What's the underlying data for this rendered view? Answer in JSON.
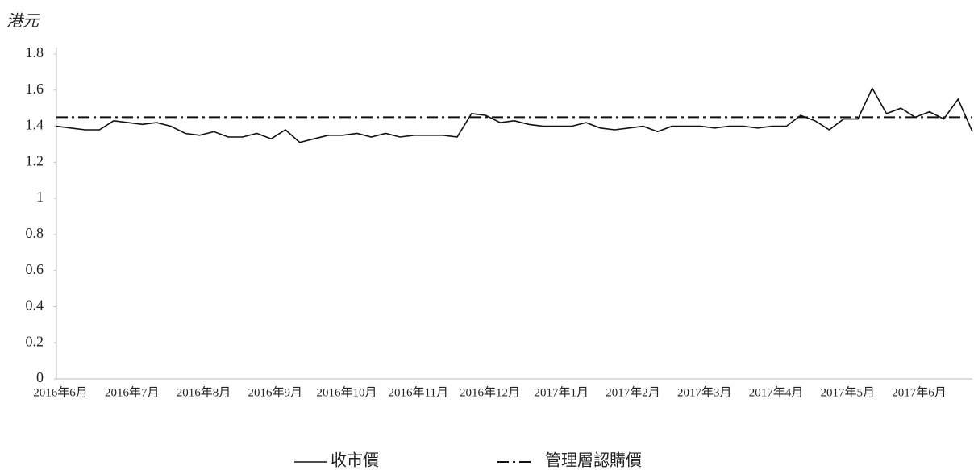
{
  "chart_data": {
    "type": "line",
    "y_label": "港元",
    "categories": [
      "2016年6月",
      null,
      null,
      null,
      null,
      "2016年7月",
      null,
      null,
      null,
      null,
      "2016年8月",
      null,
      null,
      null,
      null,
      "2016年9月",
      null,
      null,
      null,
      null,
      "2016年10月",
      null,
      null,
      null,
      null,
      "2016年11月",
      null,
      null,
      null,
      null,
      "2016年12月",
      null,
      null,
      null,
      null,
      "2017年1月",
      null,
      null,
      null,
      null,
      "2017年2月",
      null,
      null,
      null,
      null,
      "2017年3月",
      null,
      null,
      null,
      null,
      "2017年4月",
      null,
      null,
      null,
      null,
      "2017年5月",
      null,
      null,
      null,
      null,
      "2017年6月",
      null,
      null,
      null,
      null
    ],
    "series": [
      {
        "name": "收市價",
        "color": "#111111",
        "values": [
          1.4,
          1.39,
          1.38,
          1.38,
          1.43,
          1.42,
          1.41,
          1.42,
          1.4,
          1.36,
          1.35,
          1.37,
          1.34,
          1.34,
          1.36,
          1.33,
          1.38,
          1.31,
          1.33,
          1.35,
          1.35,
          1.36,
          1.34,
          1.36,
          1.34,
          1.35,
          1.35,
          1.35,
          1.34,
          1.47,
          1.46,
          1.42,
          1.43,
          1.41,
          1.4,
          1.4,
          1.4,
          1.42,
          1.39,
          1.38,
          1.39,
          1.4,
          1.37,
          1.4,
          1.4,
          1.4,
          1.39,
          1.4,
          1.4,
          1.39,
          1.4,
          1.4,
          1.46,
          1.43,
          1.38,
          1.44,
          1.44,
          1.61,
          1.47,
          1.5,
          1.45,
          1.48,
          1.44,
          1.55,
          1.37
        ]
      }
    ],
    "reference_line": {
      "name": "管理層認購價",
      "value": 1.45,
      "color": "#111111",
      "style": "dash-dot"
    },
    "ylim": [
      0,
      1.8
    ],
    "yticks": [
      0,
      0.2,
      0.4,
      0.6,
      0.8,
      1,
      1.2,
      1.4,
      1.6,
      1.8
    ],
    "grid": false
  }
}
